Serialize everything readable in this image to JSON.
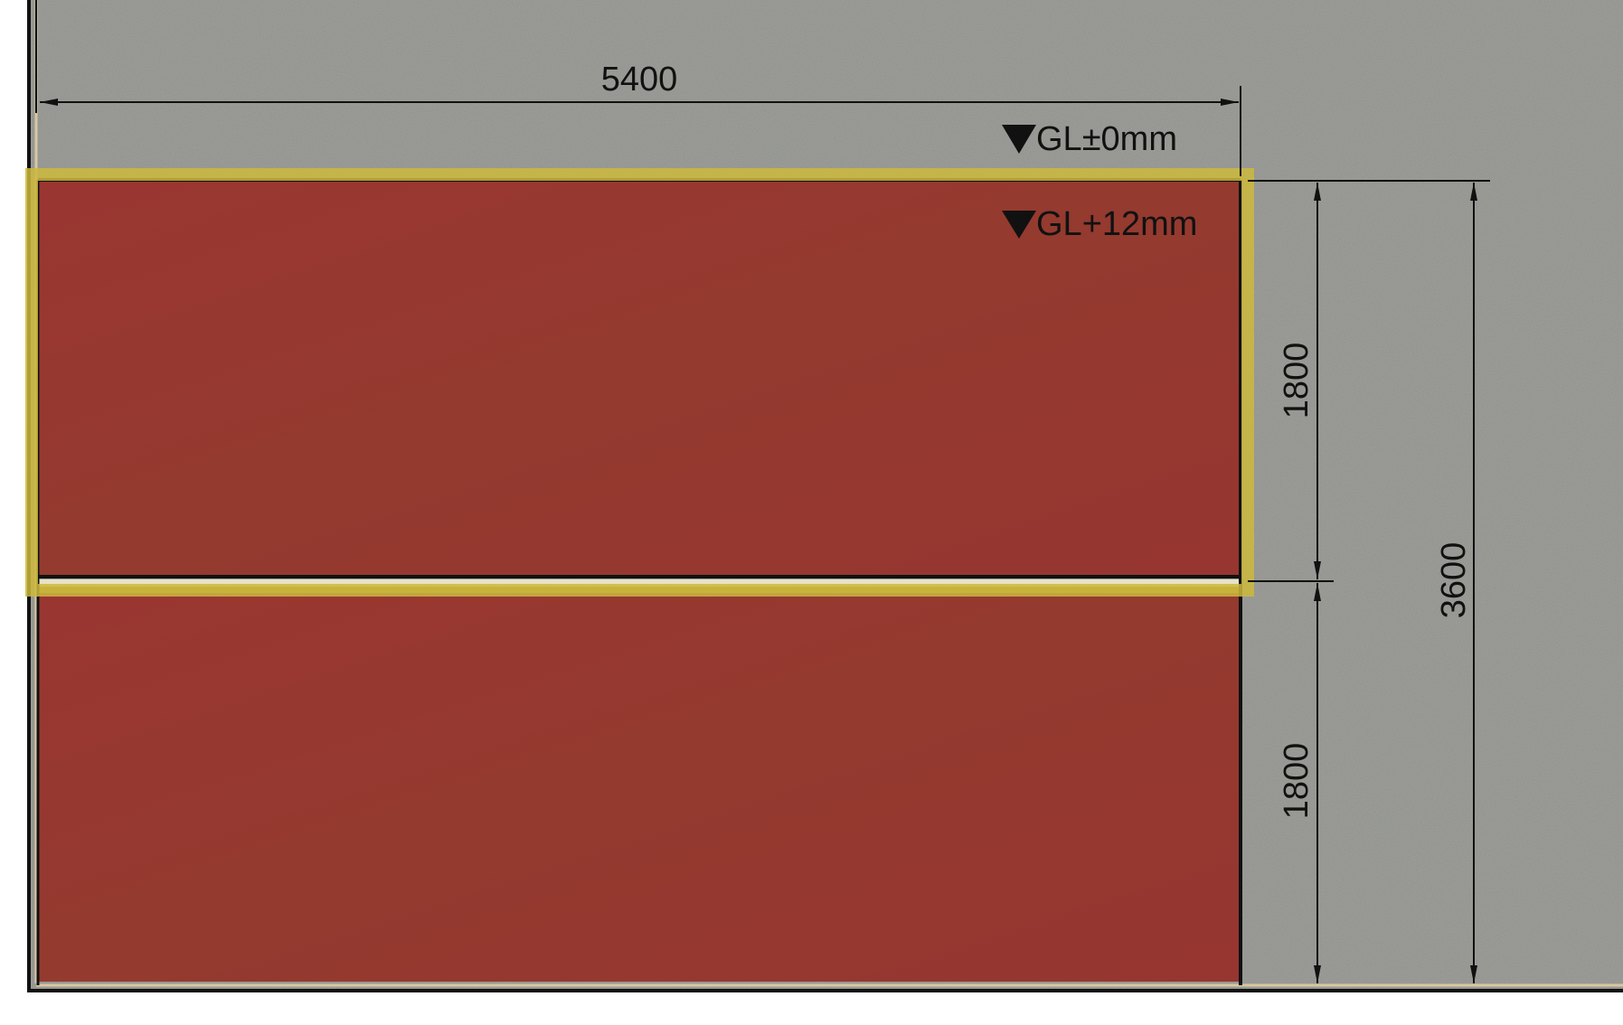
{
  "dimensions": {
    "width_top": "5400",
    "height_upper": "1800",
    "height_lower": "1800",
    "height_total": "3600"
  },
  "levels": {
    "ground": "GL±0mm",
    "raised": "GL+12mm"
  },
  "colors": {
    "ground_surface": "#8e8f8a",
    "panel_fill": "#973530",
    "highlight_outline": "#c8b43a",
    "line": "#111111"
  }
}
